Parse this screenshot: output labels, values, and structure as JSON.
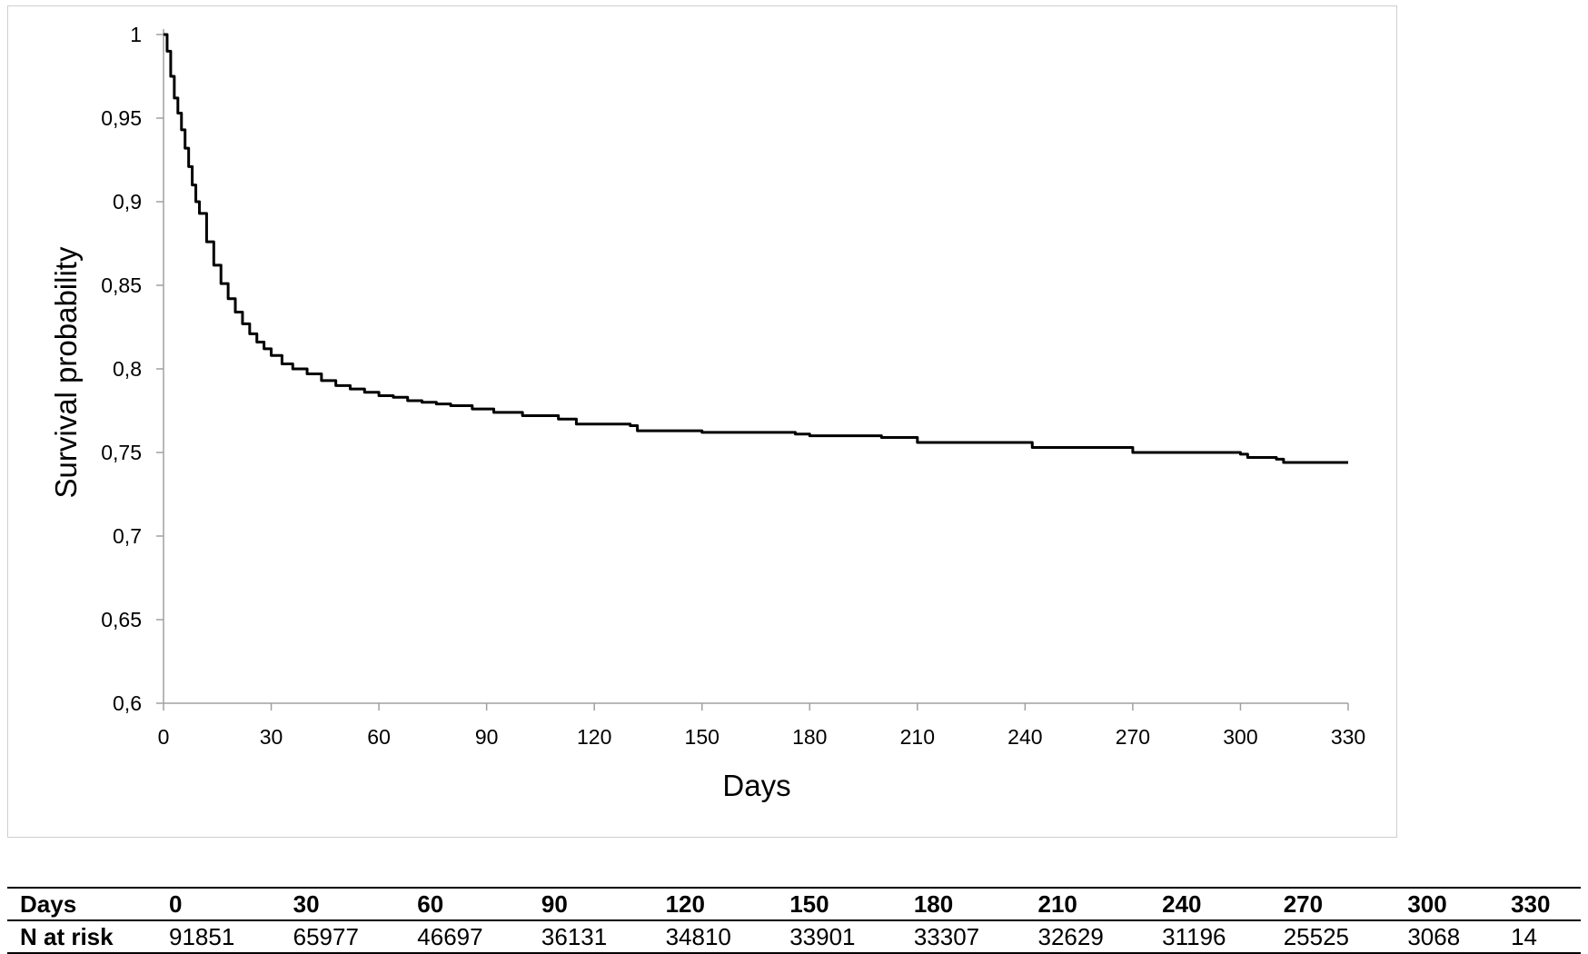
{
  "chart_data": {
    "type": "line",
    "step": true,
    "title": "",
    "xlabel": "Days",
    "ylabel": "Survival probability",
    "xlim": [
      0,
      330
    ],
    "ylim": [
      0.6,
      1.0
    ],
    "x_ticks": [
      0,
      30,
      60,
      90,
      120,
      150,
      180,
      210,
      240,
      270,
      300,
      330
    ],
    "x_tick_labels": [
      "0",
      "30",
      "60",
      "90",
      "120",
      "150",
      "180",
      "210",
      "240",
      "270",
      "300",
      "330"
    ],
    "y_ticks": [
      0.6,
      0.65,
      0.7,
      0.75,
      0.8,
      0.85,
      0.9,
      0.95,
      1.0
    ],
    "y_tick_labels": [
      "0,6",
      "0,65",
      "0,7",
      "0,75",
      "0,8",
      "0,85",
      "0,9",
      "0,95",
      "1"
    ],
    "grid": false,
    "legend": "none",
    "line_color": "#000000",
    "series": [
      {
        "x": [
          0,
          1,
          2,
          3,
          4,
          5,
          6,
          7,
          8,
          9,
          10,
          12,
          14,
          16,
          18,
          20,
          22,
          24,
          26,
          28,
          30,
          33,
          36,
          40,
          44,
          48,
          52,
          56,
          60,
          64,
          68,
          72,
          76,
          80,
          86,
          92,
          100,
          110,
          115,
          130,
          132,
          150,
          176,
          180,
          200,
          208,
          210,
          240,
          242,
          270,
          300,
          302,
          310,
          312,
          330
        ],
        "y": [
          1.0,
          0.99,
          0.975,
          0.962,
          0.953,
          0.943,
          0.932,
          0.921,
          0.91,
          0.9,
          0.893,
          0.876,
          0.862,
          0.851,
          0.842,
          0.834,
          0.827,
          0.821,
          0.816,
          0.812,
          0.808,
          0.803,
          0.8,
          0.797,
          0.793,
          0.79,
          0.788,
          0.786,
          0.784,
          0.783,
          0.781,
          0.78,
          0.779,
          0.778,
          0.776,
          0.774,
          0.772,
          0.77,
          0.767,
          0.766,
          0.763,
          0.762,
          0.761,
          0.76,
          0.759,
          0.759,
          0.756,
          0.756,
          0.753,
          0.75,
          0.749,
          0.747,
          0.746,
          0.744,
          0.744
        ]
      }
    ]
  },
  "risk_table": {
    "row_labels": [
      "Days",
      "N at risk"
    ],
    "days": [
      "0",
      "30",
      "60",
      "90",
      "120",
      "150",
      "180",
      "210",
      "240",
      "270",
      "300",
      "330"
    ],
    "n_at_risk": [
      "91851",
      "65977",
      "46697",
      "36131",
      "34810",
      "33901",
      "33307",
      "32629",
      "31196",
      "25525",
      "3068",
      "14"
    ]
  }
}
